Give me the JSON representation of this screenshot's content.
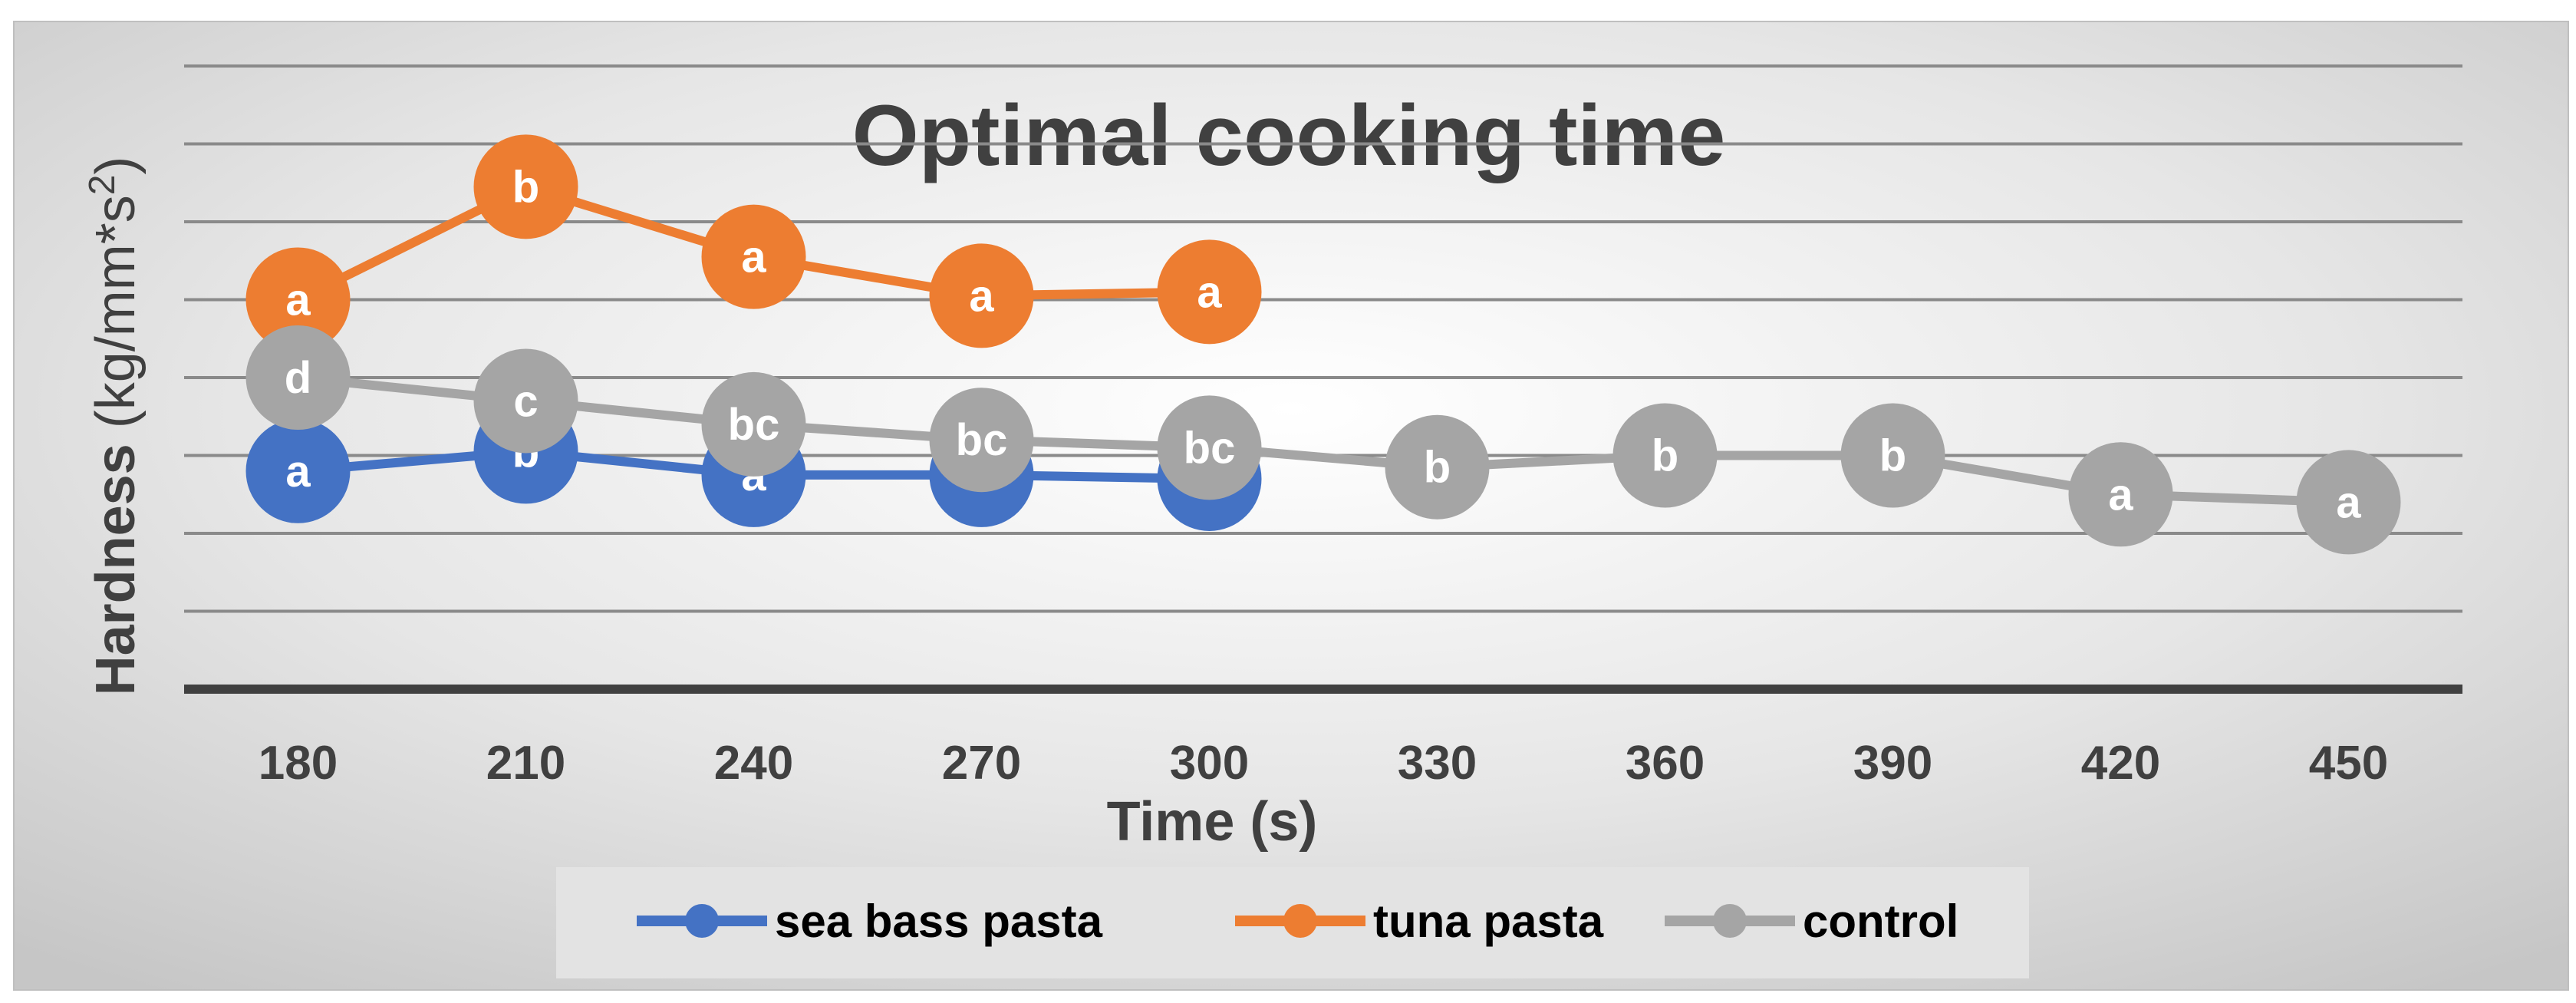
{
  "chart_data": {
    "type": "line",
    "title": "Optimal cooking time",
    "xlabel": "Time (s)",
    "ylabel_main": "Hardness (kg/mm*s",
    "ylabel_sup": "2",
    "ylabel_close": ")",
    "categories": [
      "180",
      "210",
      "240",
      "270",
      "300",
      "330",
      "360",
      "390",
      "420",
      "450"
    ],
    "y_range": [
      0,
      8
    ],
    "grid": true,
    "legend_position": "bottom",
    "series": [
      {
        "name": "sea bass pasta",
        "color": "#4472C4",
        "values": [
          2.8,
          3.05,
          2.75,
          2.75,
          2.7,
          null,
          null,
          null,
          null,
          null
        ],
        "labels": [
          "a",
          "b",
          "a",
          "a",
          "a",
          null,
          null,
          null,
          null,
          null
        ]
      },
      {
        "name": "tuna pasta",
        "color": "#ED7D31",
        "values": [
          5.0,
          6.45,
          5.55,
          5.05,
          5.1,
          null,
          null,
          null,
          null,
          null
        ],
        "labels": [
          "a",
          "b",
          "a",
          "a",
          "a",
          null,
          null,
          null,
          null,
          null
        ]
      },
      {
        "name": "control",
        "color": "#A5A5A5",
        "values": [
          4.0,
          3.7,
          3.4,
          3.2,
          3.1,
          2.85,
          3.0,
          3.0,
          2.5,
          2.4
        ],
        "labels": [
          "d",
          "c",
          "bc",
          "bc",
          "bc",
          "b",
          "b",
          "b",
          "a",
          "a"
        ]
      }
    ]
  }
}
